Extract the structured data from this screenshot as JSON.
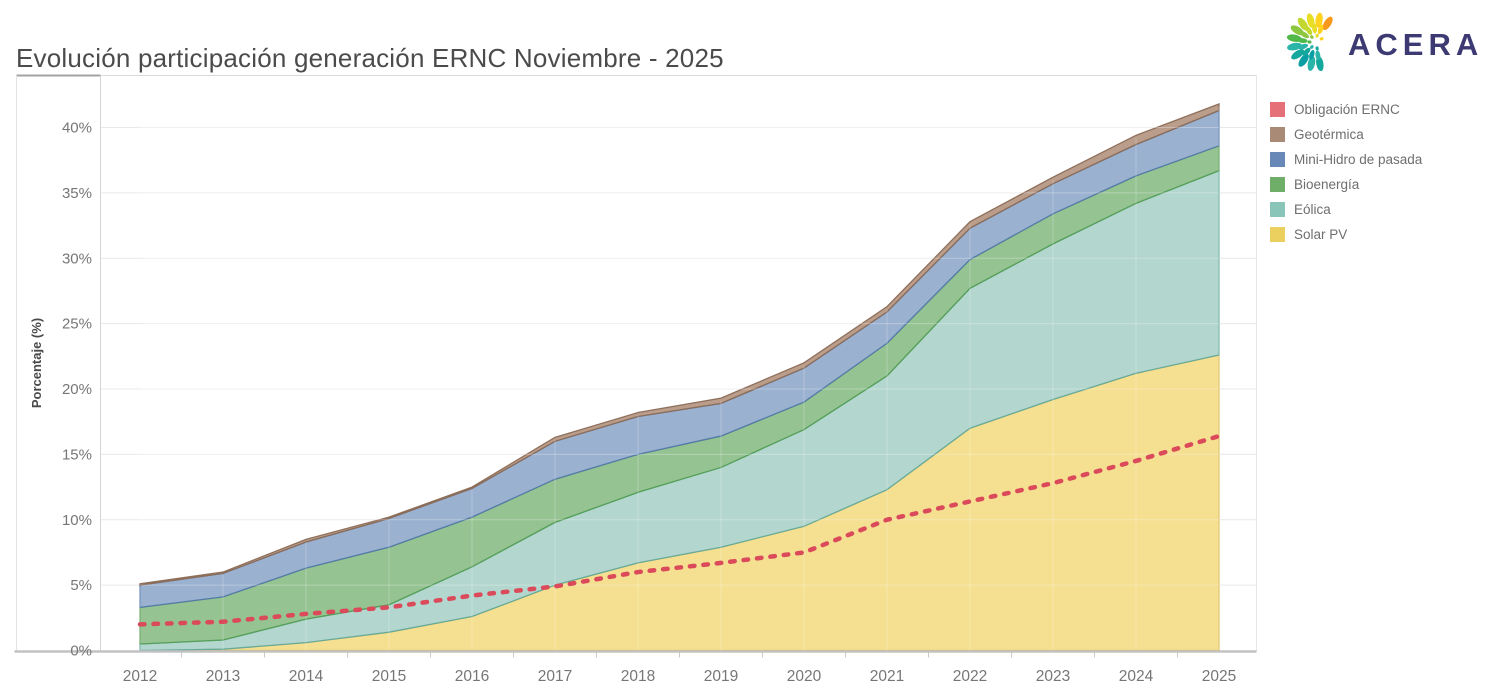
{
  "header": {
    "title": "Evolución participación generación ERNC Noviembre - 2025",
    "logo_text": "ACERA",
    "logo_text_color": "#3d3a73",
    "logo_palette": [
      "#f8981d",
      "#ffd21e",
      "#e8de26",
      "#c3d82e",
      "#8dc63f",
      "#50b848",
      "#2bb4a8",
      "#14a79d",
      "#0a9ea4"
    ]
  },
  "legend": {
    "items": [
      {
        "label": "Obligación ERNC",
        "color": "#e57077"
      },
      {
        "label": "Geotérmica",
        "color": "#a98a76"
      },
      {
        "label": "Mini-Hidro de pasada",
        "color": "#6889b7"
      },
      {
        "label": "Bioenergía",
        "color": "#6fae69"
      },
      {
        "label": "Eólica",
        "color": "#8ac5b9"
      },
      {
        "label": "Solar PV",
        "color": "#ecd05f"
      }
    ]
  },
  "chart_data": {
    "type": "area",
    "stacked": true,
    "title": "Evolución participación generación ERNC Noviembre - 2025",
    "xlabel": "",
    "ylabel": "Porcentaje (%)",
    "grid": true,
    "legend_position": "right",
    "x": [
      2012,
      2013,
      2014,
      2015,
      2016,
      2017,
      2018,
      2019,
      2020,
      2021,
      2022,
      2023,
      2024,
      2025
    ],
    "y_ticks": [
      "0%",
      "5%",
      "10%",
      "15%",
      "20%",
      "25%",
      "30%",
      "35%",
      "40%"
    ],
    "ylim": [
      0,
      44
    ],
    "series": [
      {
        "name": "Solar PV",
        "fill": "#f4db85",
        "stroke": "#d9b84e",
        "values": [
          0.0,
          0.1,
          0.6,
          1.4,
          2.6,
          5.0,
          6.7,
          7.9,
          9.5,
          12.3,
          17.0,
          19.2,
          21.2,
          22.6
        ]
      },
      {
        "name": "Eólica",
        "fill": "#abd2c9",
        "stroke": "#63a99b",
        "values": [
          0.5,
          0.7,
          1.8,
          2.1,
          3.8,
          4.8,
          5.4,
          6.1,
          7.4,
          8.7,
          10.7,
          11.9,
          13.0,
          14.1
        ]
      },
      {
        "name": "Bioenergía",
        "fill": "#8abd86",
        "stroke": "#539e54",
        "values": [
          2.8,
          3.3,
          3.9,
          4.4,
          3.8,
          3.3,
          2.9,
          2.4,
          2.1,
          2.5,
          2.2,
          2.3,
          2.1,
          1.9
        ]
      },
      {
        "name": "Mini-Hidro de pasada",
        "fill": "#8fa9cb",
        "stroke": "#5479ab",
        "values": [
          1.7,
          1.8,
          2.0,
          2.2,
          2.2,
          2.9,
          2.9,
          2.5,
          2.6,
          2.4,
          2.4,
          2.3,
          2.4,
          2.7
        ]
      },
      {
        "name": "Geotérmica",
        "fill": "#b2937e",
        "stroke": "#8a6a55",
        "values": [
          0.1,
          0.1,
          0.2,
          0.1,
          0.1,
          0.3,
          0.3,
          0.4,
          0.4,
          0.4,
          0.5,
          0.5,
          0.7,
          0.5
        ]
      }
    ],
    "line_series": {
      "name": "Obligación ERNC",
      "color": "#db4a5a",
      "style": "dashed",
      "values": [
        2.0,
        2.2,
        2.8,
        3.3,
        4.2,
        4.9,
        6.0,
        6.7,
        7.5,
        10.0,
        11.4,
        12.8,
        14.5,
        16.4
      ]
    }
  }
}
